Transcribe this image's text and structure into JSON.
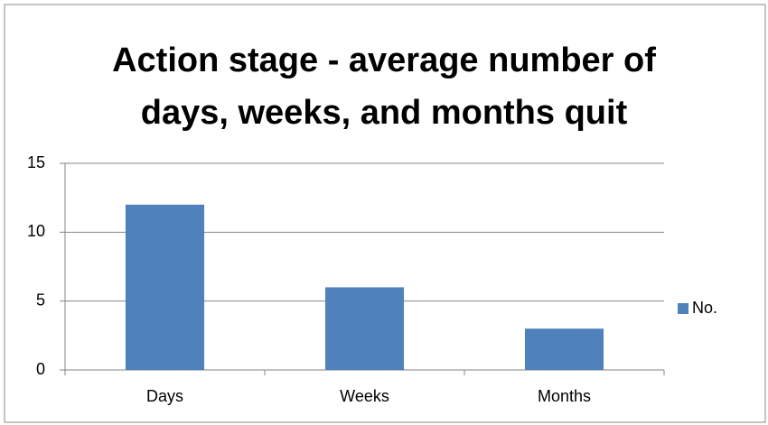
{
  "chart_data": {
    "type": "bar",
    "title": "Action stage - average number of days, weeks, and months quit",
    "categories": [
      "Days",
      "Weeks",
      "Months"
    ],
    "series": [
      {
        "name": "No.",
        "color": "#4f81bd",
        "values": [
          12,
          6,
          3
        ]
      }
    ],
    "ylim": [
      0,
      15
    ],
    "yticks": [
      0,
      5,
      10,
      15
    ],
    "grid": true,
    "legend": "right"
  }
}
